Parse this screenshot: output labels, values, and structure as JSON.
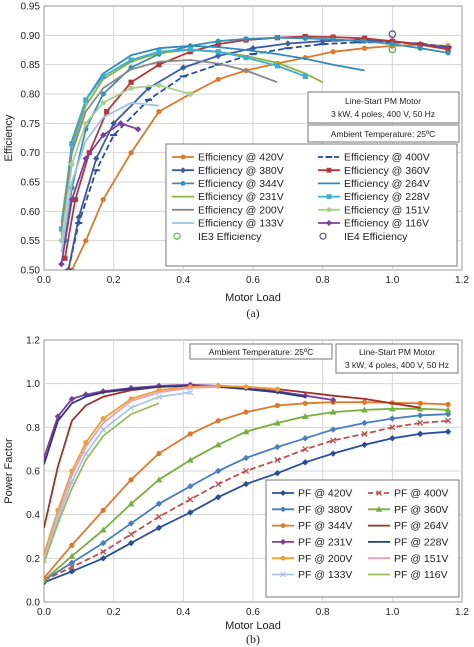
{
  "chart_data": [
    {
      "type": "line",
      "caption": "(a)",
      "xlabel": "Motor Load",
      "ylabel": "Efficiency",
      "xlim": [
        0,
        1.2
      ],
      "ylim": [
        0.5,
        0.95
      ],
      "xticks": [
        "0.0",
        "0.2",
        "0.4",
        "0.6",
        "0.8",
        "1.0",
        "1.2"
      ],
      "yticks": [
        "0.50",
        "0.55",
        "0.60",
        "0.65",
        "0.70",
        "0.75",
        "0.80",
        "0.85",
        "0.90",
        "0.95"
      ],
      "grid": true,
      "annotation_box": [
        "Line-Start PM Motor",
        "3 kW, 4 poles, 400 V, 50 Hz"
      ],
      "annotation_temp": "Ambient Temperature:  25ºC",
      "legend_position": "bottom-right",
      "series": [
        {
          "name": "Efficiency @ 420V",
          "color": "#E0782A",
          "marker": "circle",
          "x": [
            0.08,
            0.12,
            0.17,
            0.25,
            0.33,
            0.42,
            0.5,
            0.58,
            0.67,
            0.75,
            0.83,
            0.92,
            1.0,
            1.08,
            1.16
          ],
          "y": [
            0.5,
            0.55,
            0.62,
            0.7,
            0.77,
            0.8,
            0.825,
            0.84,
            0.852,
            0.862,
            0.872,
            0.878,
            0.882,
            0.884,
            0.882
          ]
        },
        {
          "name": "Efficiency @ 400V",
          "color": "#2B4E9B",
          "marker": "dash",
          "dashed": true,
          "x": [
            0.07,
            0.1,
            0.15,
            0.2,
            0.3,
            0.4,
            0.5,
            0.6,
            0.7,
            0.8,
            0.9,
            1.0,
            1.08,
            1.16
          ],
          "y": [
            0.5,
            0.58,
            0.67,
            0.73,
            0.79,
            0.83,
            0.85,
            0.868,
            0.878,
            0.885,
            0.888,
            0.888,
            0.886,
            0.88
          ]
        },
        {
          "name": "Efficiency @ 380V",
          "color": "#3A5BA8",
          "marker": "diamond",
          "x": [
            0.07,
            0.1,
            0.15,
            0.2,
            0.3,
            0.4,
            0.5,
            0.6,
            0.7,
            0.8,
            0.9,
            1.0,
            1.08,
            1.16
          ],
          "y": [
            0.5,
            0.59,
            0.69,
            0.75,
            0.81,
            0.845,
            0.865,
            0.878,
            0.886,
            0.89,
            0.892,
            0.89,
            0.885,
            0.878
          ]
        },
        {
          "name": "Efficiency @ 360V",
          "color": "#B5373A",
          "marker": "square",
          "x": [
            0.06,
            0.09,
            0.13,
            0.18,
            0.25,
            0.33,
            0.42,
            0.5,
            0.58,
            0.67,
            0.75,
            0.83,
            0.92,
            1.0,
            1.08,
            1.16
          ],
          "y": [
            0.52,
            0.62,
            0.7,
            0.77,
            0.82,
            0.85,
            0.872,
            0.885,
            0.892,
            0.896,
            0.898,
            0.897,
            0.895,
            0.89,
            0.884,
            0.876
          ]
        },
        {
          "name": "Efficiency @ 344V",
          "color": "#3A8FB5",
          "marker": "circle",
          "x": [
            0.06,
            0.08,
            0.12,
            0.17,
            0.25,
            0.33,
            0.42,
            0.5,
            0.58,
            0.67,
            0.75,
            0.83,
            0.92,
            1.0,
            1.08,
            1.16
          ],
          "y": [
            0.55,
            0.64,
            0.74,
            0.8,
            0.845,
            0.868,
            0.882,
            0.89,
            0.894,
            0.896,
            0.895,
            0.893,
            0.89,
            0.885,
            0.878,
            0.87
          ]
        },
        {
          "name": "Efficiency @ 264V",
          "color": "#2E8BC0",
          "marker": "none",
          "x": [
            0.05,
            0.08,
            0.12,
            0.17,
            0.25,
            0.33,
            0.42,
            0.5,
            0.58,
            0.67,
            0.75,
            0.83,
            0.92
          ],
          "y": [
            0.55,
            0.72,
            0.79,
            0.835,
            0.866,
            0.878,
            0.882,
            0.88,
            0.875,
            0.868,
            0.86,
            0.85,
            0.84
          ]
        },
        {
          "name": "Efficiency @ 231V",
          "color": "#8DB33C",
          "marker": "none",
          "x": [
            0.05,
            0.08,
            0.12,
            0.17,
            0.25,
            0.33,
            0.42,
            0.5,
            0.58,
            0.67,
            0.75,
            0.8
          ],
          "y": [
            0.58,
            0.71,
            0.78,
            0.825,
            0.855,
            0.87,
            0.875,
            0.872,
            0.865,
            0.853,
            0.835,
            0.82
          ]
        },
        {
          "name": "Efficiency @ 228V",
          "color": "#3EAECF",
          "marker": "square",
          "x": [
            0.05,
            0.08,
            0.12,
            0.17,
            0.25,
            0.33,
            0.42,
            0.5,
            0.58,
            0.67,
            0.75
          ],
          "y": [
            0.57,
            0.715,
            0.79,
            0.83,
            0.858,
            0.872,
            0.876,
            0.872,
            0.862,
            0.848,
            0.83
          ]
        },
        {
          "name": "Efficiency @ 200V",
          "color": "#8A8A8A",
          "marker": "none",
          "x": [
            0.05,
            0.08,
            0.12,
            0.17,
            0.25,
            0.33,
            0.42,
            0.5,
            0.58,
            0.67
          ],
          "y": [
            0.56,
            0.7,
            0.77,
            0.81,
            0.842,
            0.855,
            0.858,
            0.852,
            0.84,
            0.82
          ]
        },
        {
          "name": "Efficiency @ 151V",
          "color": "#A8D08D",
          "marker": "circle",
          "x": [
            0.05,
            0.08,
            0.12,
            0.17,
            0.25,
            0.33,
            0.42
          ],
          "y": [
            0.55,
            0.68,
            0.75,
            0.785,
            0.81,
            0.815,
            0.8
          ]
        },
        {
          "name": "Efficiency @ 133V",
          "color": "#9CC3E6",
          "marker": "none",
          "x": [
            0.05,
            0.08,
            0.12,
            0.17,
            0.25,
            0.33
          ],
          "y": [
            0.53,
            0.65,
            0.72,
            0.76,
            0.785,
            0.78
          ]
        },
        {
          "name": "Efficiency @ 116V",
          "color": "#7B3FA0",
          "marker": "diamond",
          "x": [
            0.05,
            0.08,
            0.12,
            0.17,
            0.22,
            0.27
          ],
          "y": [
            0.51,
            0.62,
            0.69,
            0.73,
            0.75,
            0.74
          ]
        }
      ],
      "points": [
        {
          "name": "IE3 Efficiency",
          "color": "#6AAE3E",
          "x": 1.0,
          "y": 0.876
        },
        {
          "name": "IE4 Efficiency",
          "color": "#5A4E9E",
          "x": 1.0,
          "y": 0.902
        }
      ]
    },
    {
      "type": "line",
      "caption": "(b)",
      "xlabel": "Motor Load",
      "ylabel": "Power Factor",
      "xlim": [
        0,
        1.2
      ],
      "ylim": [
        0,
        1.2
      ],
      "xticks": [
        "0.0",
        "0.2",
        "0.4",
        "0.6",
        "0.8",
        "1.0",
        "1.2"
      ],
      "yticks": [
        "0.0",
        "0.2",
        "0.4",
        "0.6",
        "0.8",
        "1.0",
        "1.2"
      ],
      "grid": true,
      "annotation_temp": "Ambient Temperature:  25ºC",
      "annotation_box": [
        "Line-Start PM Motor",
        "3 kW, 4 poles, 400 V, 50 Hz"
      ],
      "legend_position": "bottom-right",
      "series": [
        {
          "name": "PF @ 420V",
          "color": "#2B4E9B",
          "marker": "diamond",
          "x": [
            0,
            0.08,
            0.17,
            0.25,
            0.33,
            0.42,
            0.5,
            0.58,
            0.67,
            0.75,
            0.83,
            0.92,
            1.0,
            1.08,
            1.16
          ],
          "y": [
            0.09,
            0.14,
            0.2,
            0.27,
            0.34,
            0.41,
            0.48,
            0.54,
            0.59,
            0.64,
            0.68,
            0.72,
            0.75,
            0.77,
            0.78
          ]
        },
        {
          "name": "PF @ 400V",
          "color": "#C0504D",
          "marker": "cross",
          "dashed": true,
          "x": [
            0,
            0.08,
            0.17,
            0.25,
            0.33,
            0.42,
            0.5,
            0.58,
            0.67,
            0.75,
            0.83,
            0.92,
            1.0,
            1.08,
            1.16
          ],
          "y": [
            0.1,
            0.16,
            0.23,
            0.31,
            0.39,
            0.47,
            0.54,
            0.6,
            0.65,
            0.7,
            0.74,
            0.77,
            0.8,
            0.82,
            0.83
          ]
        },
        {
          "name": "PF @ 380V",
          "color": "#4A7EC0",
          "marker": "diamond",
          "x": [
            0,
            0.08,
            0.17,
            0.25,
            0.33,
            0.42,
            0.5,
            0.58,
            0.67,
            0.75,
            0.83,
            0.92,
            1.0,
            1.08,
            1.16
          ],
          "y": [
            0.1,
            0.18,
            0.27,
            0.36,
            0.45,
            0.53,
            0.6,
            0.66,
            0.71,
            0.75,
            0.79,
            0.82,
            0.84,
            0.855,
            0.86
          ]
        },
        {
          "name": "PF @ 360V",
          "color": "#7AAE3C",
          "marker": "triangle",
          "x": [
            0,
            0.08,
            0.17,
            0.25,
            0.33,
            0.42,
            0.5,
            0.58,
            0.67,
            0.75,
            0.83,
            0.92,
            1.0,
            1.08,
            1.16
          ],
          "y": [
            0.1,
            0.21,
            0.33,
            0.45,
            0.56,
            0.65,
            0.72,
            0.78,
            0.82,
            0.85,
            0.87,
            0.88,
            0.885,
            0.885,
            0.88
          ]
        },
        {
          "name": "PF @ 344V",
          "color": "#E0782A",
          "marker": "circle",
          "x": [
            0,
            0.08,
            0.17,
            0.25,
            0.33,
            0.42,
            0.5,
            0.58,
            0.67,
            0.75,
            0.83,
            0.92,
            1.0,
            1.08,
            1.16
          ],
          "y": [
            0.11,
            0.26,
            0.42,
            0.56,
            0.68,
            0.77,
            0.83,
            0.87,
            0.9,
            0.91,
            0.915,
            0.915,
            0.912,
            0.91,
            0.905
          ]
        },
        {
          "name": "PF @ 264V",
          "color": "#A0302C",
          "marker": "none",
          "x": [
            0,
            0.04,
            0.08,
            0.12,
            0.17,
            0.25,
            0.33,
            0.42,
            0.5,
            0.58,
            0.67,
            0.75,
            0.83,
            0.92,
            1.0,
            1.08
          ],
          "y": [
            0.34,
            0.62,
            0.83,
            0.9,
            0.94,
            0.97,
            0.985,
            0.99,
            0.99,
            0.985,
            0.975,
            0.96,
            0.945,
            0.93,
            0.91,
            0.89
          ]
        },
        {
          "name": "PF @ 231V",
          "color": "#7B3FA0",
          "marker": "diamond",
          "x": [
            0,
            0.04,
            0.08,
            0.12,
            0.17,
            0.25,
            0.33,
            0.42,
            0.5,
            0.58,
            0.67,
            0.75,
            0.83
          ],
          "y": [
            0.66,
            0.85,
            0.93,
            0.95,
            0.965,
            0.98,
            0.99,
            0.995,
            0.99,
            0.98,
            0.965,
            0.945,
            0.925
          ]
        },
        {
          "name": "PF @ 228V",
          "color": "#2E3A78",
          "marker": "none",
          "x": [
            0,
            0.04,
            0.08,
            0.12,
            0.17,
            0.25,
            0.33,
            0.42,
            0.5,
            0.58,
            0.67,
            0.75
          ],
          "y": [
            0.63,
            0.83,
            0.91,
            0.94,
            0.96,
            0.975,
            0.985,
            0.99,
            0.985,
            0.975,
            0.96,
            0.94
          ]
        },
        {
          "name": "PF @ 200V",
          "color": "#F0A030",
          "marker": "circle",
          "x": [
            0,
            0.04,
            0.08,
            0.12,
            0.17,
            0.25,
            0.33,
            0.42,
            0.5,
            0.58,
            0.67
          ],
          "y": [
            0.22,
            0.42,
            0.6,
            0.73,
            0.84,
            0.93,
            0.97,
            0.985,
            0.99,
            0.985,
            0.975
          ]
        },
        {
          "name": "PF @ 151V",
          "color": "#E8A0B8",
          "marker": "none",
          "x": [
            0,
            0.04,
            0.08,
            0.12,
            0.17,
            0.25,
            0.33,
            0.42,
            0.5
          ],
          "y": [
            0.2,
            0.4,
            0.58,
            0.71,
            0.82,
            0.92,
            0.96,
            0.98,
            0.985
          ]
        },
        {
          "name": "PF @ 133V",
          "color": "#A9C6E8",
          "marker": "cross",
          "x": [
            0,
            0.04,
            0.08,
            0.12,
            0.17,
            0.25,
            0.33,
            0.42
          ],
          "y": [
            0.19,
            0.38,
            0.55,
            0.68,
            0.79,
            0.89,
            0.94,
            0.96
          ]
        },
        {
          "name": "PF @ 116V",
          "color": "#9BBB59",
          "marker": "none",
          "x": [
            0,
            0.04,
            0.08,
            0.12,
            0.17,
            0.25,
            0.33
          ],
          "y": [
            0.18,
            0.36,
            0.52,
            0.65,
            0.76,
            0.86,
            0.91
          ]
        }
      ]
    }
  ]
}
